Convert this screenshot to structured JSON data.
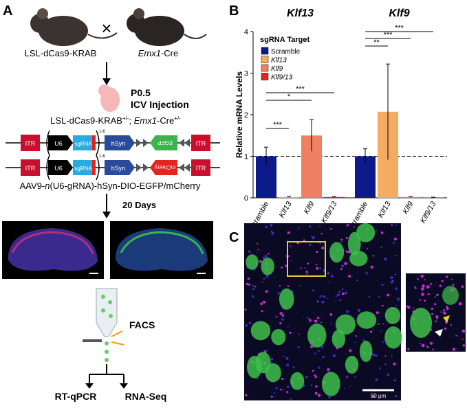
{
  "panel_labels": [
    "A",
    "B",
    "C"
  ],
  "cross": {
    "mother": "LSL-dCas9-KRAB",
    "father_italic": "Emx1",
    "father_rest": "-Cre",
    "symbol": "×"
  },
  "injection": {
    "age": "P0.5",
    "route": "ICV Injection"
  },
  "genotype": {
    "line": "LSL-dCas9-KRAB",
    "sup1": "+/-",
    "sep": "; ",
    "gene": "Emx1",
    "rest": "-Cre",
    "sup2": "+/-"
  },
  "construct": {
    "itr": "ITR",
    "promoter": "U6",
    "guide": "sgRNA",
    "repeat": "1-6",
    "neuron_promoter": "hSyn",
    "reporters": [
      "EGFP",
      "mCherry"
    ]
  },
  "vector": {
    "pre": "AAV9-",
    "n": "n",
    "post": "(U6-gRNA)-hSyn-DIO-EGFP/mCherry"
  },
  "duration": "20 Days",
  "sorting": "FACS",
  "readouts": [
    "RT-qPCR",
    "RNA-Seq"
  ],
  "chart_data": {
    "type": "bar",
    "ylabel": "Relative mRNA Levels",
    "ylim": [
      0,
      4
    ],
    "yticks": [
      0,
      1,
      2,
      3,
      4
    ],
    "reference_line": 1,
    "legend": {
      "title": "sgRNA Target",
      "names": [
        "Scramble",
        "Klf13",
        "Klf9",
        "Klf9/13"
      ],
      "colors": [
        "#0c1a8a",
        "#f6ab62",
        "#ef8062",
        "#e0261f"
      ]
    },
    "groups": [
      {
        "title": "Klf13",
        "categories": [
          "Scramble",
          "Klf13",
          "Klf9",
          "Klf9/13"
        ],
        "values": [
          1.0,
          0.02,
          1.5,
          0.02
        ],
        "errors": [
          0.22,
          0.01,
          0.38,
          0.01
        ],
        "colors": [
          "#0c1a8a",
          "#f6ab62",
          "#ef8062",
          "#e0261f"
        ],
        "significance": [
          "***",
          "*",
          "***"
        ]
      },
      {
        "title": "Klf9",
        "categories": [
          "Scramble",
          "Klf13",
          "Klf9",
          "Klf9/13"
        ],
        "values": [
          1.0,
          2.07,
          0.02,
          0.01
        ],
        "errors": [
          0.18,
          1.15,
          0.01,
          0.005
        ],
        "colors": [
          "#0c1a8a",
          "#f6ab62",
          "#ef8062",
          "#e0261f"
        ],
        "significance": [
          "**",
          "***",
          "***"
        ]
      }
    ]
  },
  "micrograph": {
    "scale_bar": "50 µm"
  }
}
